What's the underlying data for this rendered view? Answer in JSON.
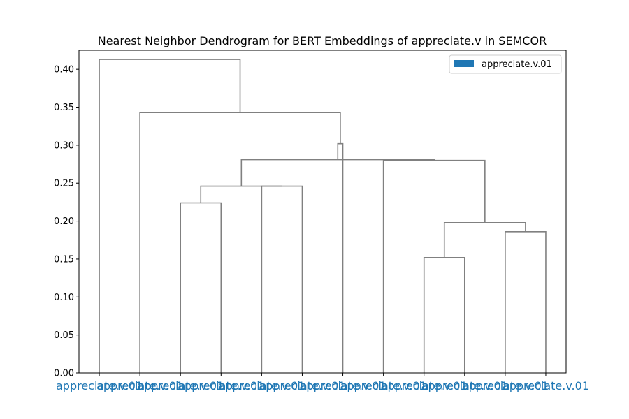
{
  "chart_data": {
    "type": "dendrogram",
    "title": "Nearest Neighbor Dendrogram for BERT Embeddings of appreciate.v in SEMCOR",
    "xlabel": "",
    "ylabel": "",
    "ylim": [
      0,
      0.425
    ],
    "yticks": [
      0.0,
      0.05,
      0.1,
      0.15,
      0.2,
      0.25,
      0.3,
      0.35,
      0.4
    ],
    "ytick_labels": [
      "0.00",
      "0.05",
      "0.10",
      "0.15",
      "0.20",
      "0.25",
      "0.30",
      "0.35",
      "0.40"
    ],
    "grid": false,
    "legend": {
      "placement": "top-right",
      "entries": [
        {
          "label": "appreciate.v.01",
          "color": "#1f77b4"
        }
      ]
    },
    "leaf_labels": [
      "appreciate.v.01",
      "appreciate.v.01",
      "appreciate.v.01",
      "appreciate.v.01",
      "appreciate.v.01",
      "appreciate.v.01",
      "appreciate.v.01",
      "appreciate.v.01",
      "appreciate.v.01",
      "appreciate.v.01",
      "appreciate.v.01",
      "appreciate.v.01"
    ],
    "leaf_label_color": "#1f77b4",
    "link_color": "#808080",
    "merges": [
      {
        "left": "L8",
        "right": "L9",
        "height": 0.152
      },
      {
        "left": "L10",
        "right": "L11",
        "height": 0.186
      },
      {
        "left": "M0",
        "right": "M1",
        "height": 0.198
      },
      {
        "left": "L2",
        "right": "L3",
        "height": 0.224
      },
      {
        "left": "L4",
        "right": "L5",
        "height": 0.246
      },
      {
        "left": "M3",
        "right": "M4",
        "height": 0.246
      },
      {
        "left": "L7",
        "right": "M2",
        "height": 0.28
      },
      {
        "left": "M5",
        "right": "M6",
        "height": 0.281
      },
      {
        "left": "L6",
        "right": "M7",
        "height": 0.302
      },
      {
        "left": "L1",
        "right": "M8",
        "height": 0.343
      },
      {
        "left": "L0",
        "right": "M9",
        "height": 0.413
      }
    ]
  }
}
